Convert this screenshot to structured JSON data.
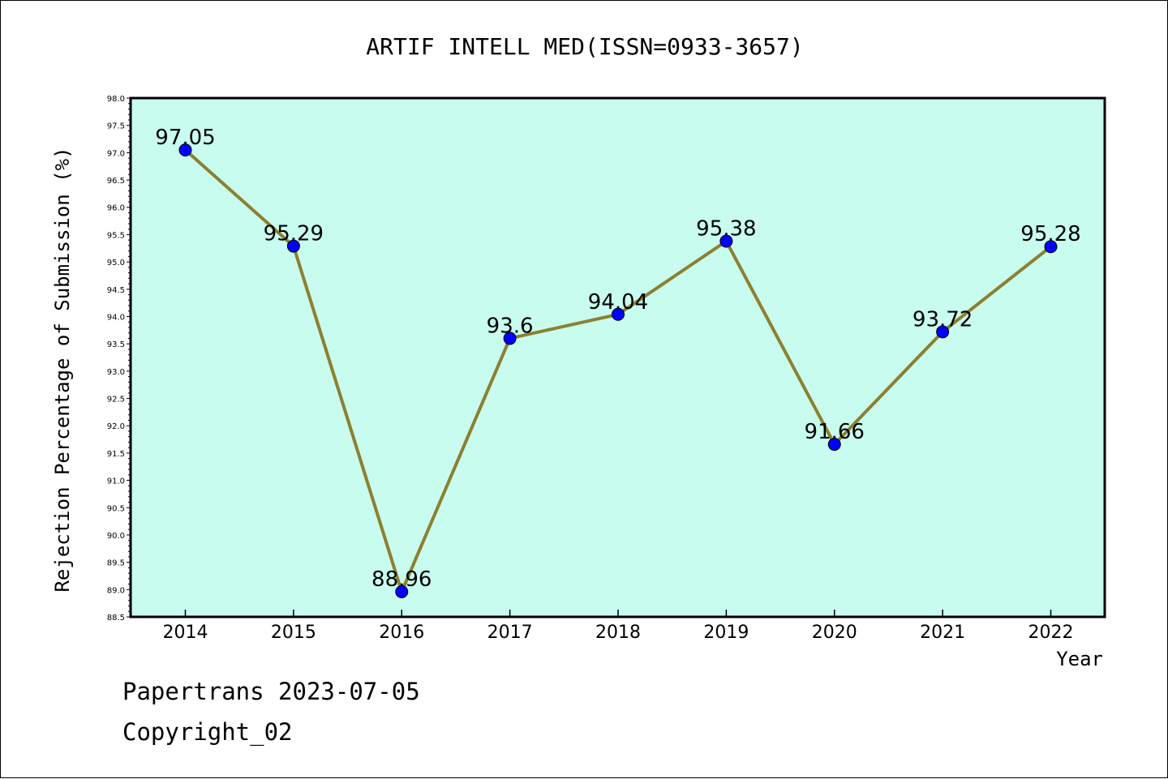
{
  "chart_data": {
    "type": "line",
    "title": "ARTIF INTELL MED(ISSN=0933-3657)",
    "xlabel": "Year",
    "ylabel": "Rejection Percentage of Submission (%)",
    "categories": [
      "2014",
      "2015",
      "2016",
      "2017",
      "2018",
      "2019",
      "2020",
      "2021",
      "2022"
    ],
    "values": [
      97.05,
      95.29,
      88.96,
      93.6,
      94.04,
      95.38,
      91.66,
      93.72,
      95.28
    ],
    "data_labels": [
      "97.05",
      "95.29",
      "88.96",
      "93.6",
      "94.04",
      "95.38",
      "91.66",
      "93.72",
      "95.28"
    ],
    "ylim": [
      88.5,
      98.0
    ],
    "y_ticks": [
      "88.5",
      "89.0",
      "89.5",
      "90.0",
      "90.5",
      "91.0",
      "91.5",
      "92.0",
      "92.5",
      "93.0",
      "93.5",
      "94.0",
      "94.5",
      "95.0",
      "95.5",
      "96.0",
      "96.5",
      "97.0",
      "97.5",
      "98.0"
    ],
    "grid": false,
    "colors": {
      "plot_background": "#c8fcee",
      "line": "#8c8030",
      "marker": "#0000ff"
    }
  },
  "footer": {
    "line1": "Papertrans 2023-07-05",
    "line2": "Copyright_02"
  }
}
